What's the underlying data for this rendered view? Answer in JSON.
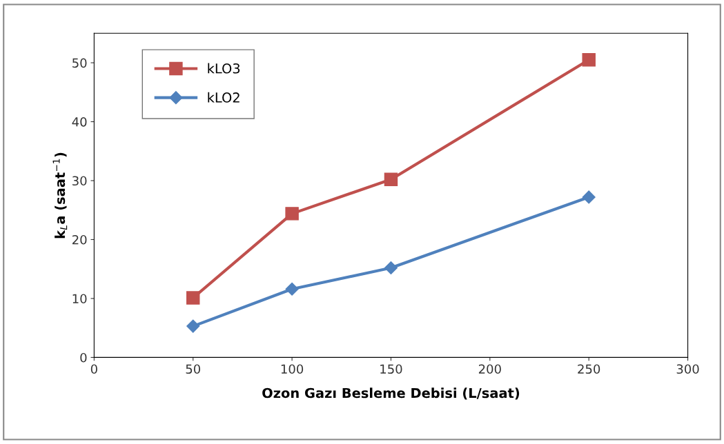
{
  "chart_data": {
    "type": "line",
    "xlabel": "Ozon Gazı Besleme Debisi (L/saat)",
    "ylabel": "k$_{L}$a (saat$^{−1}$)",
    "x": [
      50,
      100,
      150,
      250
    ],
    "series": [
      {
        "name": "kLO3",
        "color": "#c0504d",
        "values": [
          10.1,
          24.4,
          30.2,
          50.5
        ],
        "marker": "square"
      },
      {
        "name": "kLO2",
        "color": "#4f81bd",
        "values": [
          5.3,
          11.6,
          15.2,
          27.2
        ],
        "marker": "diamond"
      }
    ],
    "xlim": [
      0,
      300
    ],
    "xticks": [
      0,
      50,
      100,
      150,
      200,
      250,
      300
    ],
    "ylim": [
      0,
      55
    ],
    "yticks": [
      0,
      10,
      20,
      30,
      40,
      50
    ],
    "grid": false,
    "legend": "top left",
    "line_style": "solid"
  }
}
